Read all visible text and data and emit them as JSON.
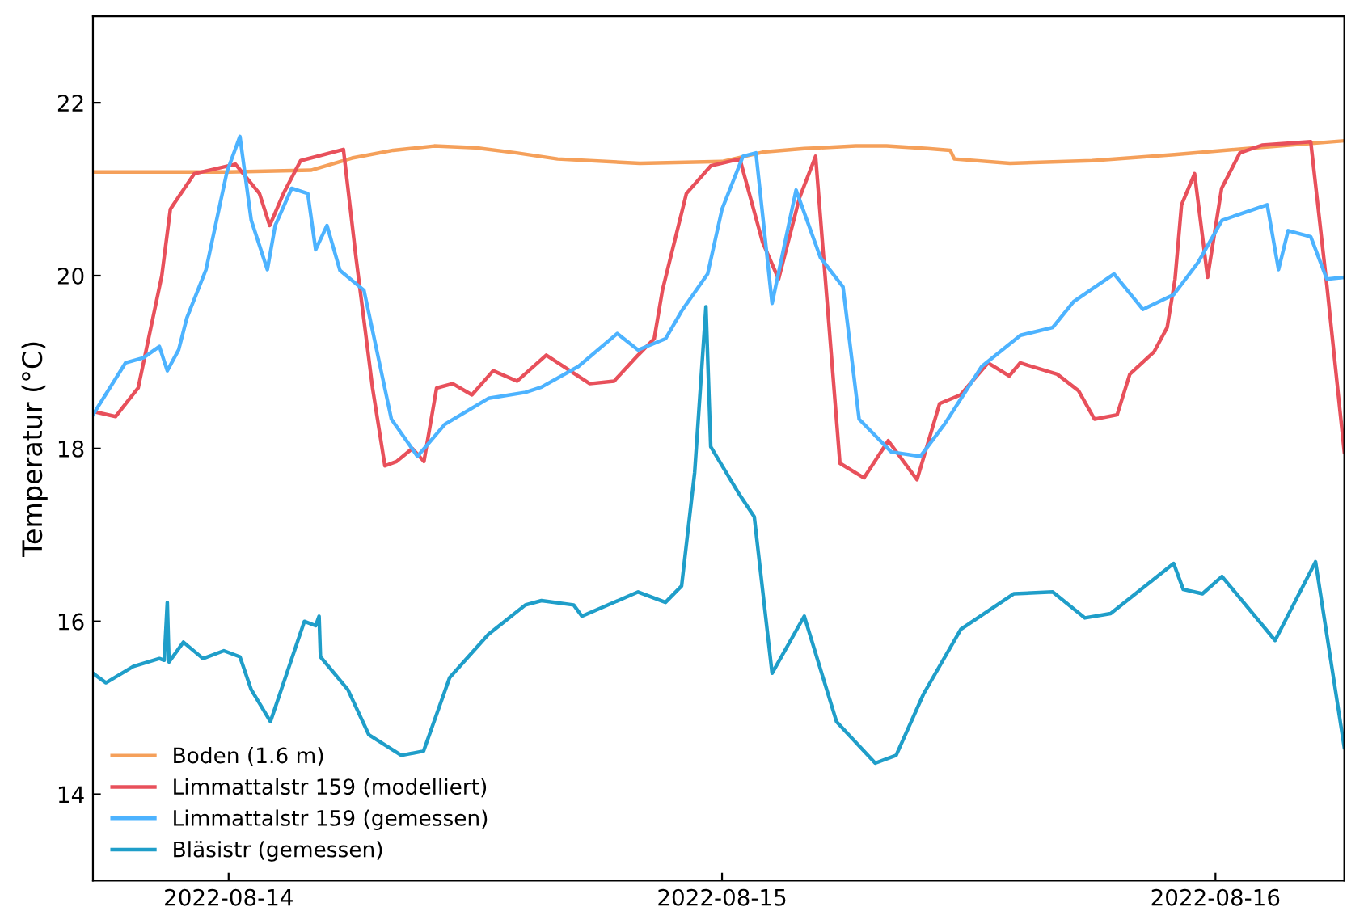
{
  "chart_data": {
    "type": "line",
    "ylabel": "Temperatur (°C)",
    "xlim": [
      "2022-08-13T17:24",
      "2022-08-16T06:16"
    ],
    "ylim": [
      13,
      23
    ],
    "xticks": [
      "2022-08-14",
      "2022-08-15",
      "2022-08-16"
    ],
    "yticks": [
      14,
      16,
      18,
      20,
      22
    ],
    "grid": false,
    "legend": "bottom left",
    "marker": "none",
    "line_style": "solid",
    "series": [
      {
        "name": "Boden (1.6 m)",
        "color": "#f5a05a",
        "x": [
          "2022-08-13T17:24",
          "2022-08-14T00:00",
          "2022-08-14T04:00",
          "2022-08-14T06:00",
          "2022-08-14T08:00",
          "2022-08-14T10:00",
          "2022-08-14T12:00",
          "2022-08-14T14:00",
          "2022-08-14T16:00",
          "2022-08-14T20:00",
          "2022-08-15T00:00",
          "2022-08-15T02:00",
          "2022-08-15T04:00",
          "2022-08-15T06:30",
          "2022-08-15T08:00",
          "2022-08-15T10:00",
          "2022-08-15T11:06",
          "2022-08-15T11:18",
          "2022-08-15T14:00",
          "2022-08-15T18:00",
          "2022-08-15T22:00",
          "2022-08-16T02:00",
          "2022-08-16T06:16"
        ],
        "values": [
          21.2,
          21.2,
          21.22,
          21.36,
          21.45,
          21.5,
          21.48,
          21.42,
          21.35,
          21.3,
          21.32,
          21.43,
          21.47,
          21.5,
          21.5,
          21.47,
          21.45,
          21.35,
          21.3,
          21.33,
          21.4,
          21.48,
          21.56
        ]
      },
      {
        "name": "Limmattalstr 159 (modelliert)",
        "color": "#e8505b",
        "x": [
          "2022-08-13T17:24",
          "2022-08-13T18:30",
          "2022-08-13T19:36",
          "2022-08-13T20:45",
          "2022-08-13T21:10",
          "2022-08-13T22:20",
          "2022-08-14T00:20",
          "2022-08-14T01:30",
          "2022-08-14T02:00",
          "2022-08-14T02:40",
          "2022-08-14T03:30",
          "2022-08-14T05:35",
          "2022-08-14T06:12",
          "2022-08-14T07:00",
          "2022-08-14T07:36",
          "2022-08-14T08:10",
          "2022-08-14T08:56",
          "2022-08-14T09:30",
          "2022-08-14T10:07",
          "2022-08-14T10:54",
          "2022-08-14T11:50",
          "2022-08-14T12:52",
          "2022-08-14T14:02",
          "2022-08-14T15:27",
          "2022-08-14T17:34",
          "2022-08-14T18:45",
          "2022-08-14T19:55",
          "2022-08-14T20:42",
          "2022-08-14T21:06",
          "2022-08-14T22:16",
          "2022-08-14T23:27",
          "2022-08-15T00:52",
          "2022-08-15T01:58",
          "2022-08-15T02:45",
          "2022-08-15T03:46",
          "2022-08-15T04:33",
          "2022-08-15T05:44",
          "2022-08-15T06:54",
          "2022-08-15T08:05",
          "2022-08-15T09:29",
          "2022-08-15T10:35",
          "2022-08-15T11:36",
          "2022-08-15T12:56",
          "2022-08-15T13:58",
          "2022-08-15T14:30",
          "2022-08-15T16:18",
          "2022-08-15T17:20",
          "2022-08-15T18:07",
          "2022-08-15T19:13",
          "2022-08-15T19:50",
          "2022-08-15T21:01",
          "2022-08-15T21:39",
          "2022-08-15T22:02",
          "2022-08-15T22:21",
          "2022-08-15T22:59",
          "2022-08-15T23:37",
          "2022-08-16T00:18",
          "2022-08-16T01:11",
          "2022-08-16T02:16",
          "2022-08-16T04:38",
          "2022-08-16T05:25",
          "2022-08-16T06:16"
        ],
        "values": [
          18.43,
          18.37,
          18.7,
          20.0,
          20.77,
          21.18,
          21.29,
          20.95,
          20.58,
          20.95,
          21.33,
          21.46,
          20.2,
          18.7,
          17.8,
          17.85,
          18.0,
          17.85,
          18.7,
          18.75,
          18.62,
          18.9,
          18.78,
          19.08,
          18.75,
          18.78,
          19.08,
          19.27,
          19.83,
          20.95,
          21.27,
          21.35,
          20.39,
          19.96,
          20.9,
          21.38,
          17.83,
          17.66,
          18.09,
          17.64,
          18.52,
          18.62,
          18.99,
          18.84,
          18.99,
          18.86,
          18.67,
          18.34,
          18.39,
          18.86,
          19.12,
          19.4,
          19.96,
          20.82,
          21.18,
          19.98,
          21.01,
          21.42,
          21.51,
          21.55,
          19.89,
          17.96
        ]
      },
      {
        "name": "Limmattalstr 159 (gemessen)",
        "color": "#4db3ff",
        "x": [
          "2022-08-13T17:24",
          "2022-08-13T18:59",
          "2022-08-13T19:51",
          "2022-08-13T20:38",
          "2022-08-13T21:01",
          "2022-08-13T21:34",
          "2022-08-13T21:58",
          "2022-08-13T22:54",
          "2022-08-13T23:55",
          "2022-08-14T00:33",
          "2022-08-14T01:06",
          "2022-08-14T01:53",
          "2022-08-14T02:16",
          "2022-08-14T03:04",
          "2022-08-14T03:51",
          "2022-08-14T04:14",
          "2022-08-14T04:47",
          "2022-08-14T05:25",
          "2022-08-14T06:35",
          "2022-08-14T07:55",
          "2022-08-14T09:11",
          "2022-08-14T10:31",
          "2022-08-14T12:38",
          "2022-08-14T14:26",
          "2022-08-14T15:13",
          "2022-08-14T17:01",
          "2022-08-14T18:54",
          "2022-08-14T19:55",
          "2022-08-14T21:15",
          "2022-08-14T22:02",
          "2022-08-14T23:18",
          "2022-08-15T00:00",
          "2022-08-15T01:01",
          "2022-08-15T01:39",
          "2022-08-15T02:26",
          "2022-08-15T03:36",
          "2022-08-15T04:47",
          "2022-08-15T05:53",
          "2022-08-15T06:40",
          "2022-08-15T08:14",
          "2022-08-15T09:39",
          "2022-08-15T10:49",
          "2022-08-15T12:38",
          "2022-08-15T14:31",
          "2022-08-15T16:05",
          "2022-08-15T17:06",
          "2022-08-15T19:04",
          "2022-08-15T20:28",
          "2022-08-15T21:58",
          "2022-08-15T23:09",
          "2022-08-16T00:19",
          "2022-08-16T02:31",
          "2022-08-16T03:04",
          "2022-08-16T03:32",
          "2022-08-16T04:38",
          "2022-08-16T05:25",
          "2022-08-16T06:16"
        ],
        "values": [
          18.39,
          18.99,
          19.05,
          19.18,
          18.9,
          19.14,
          19.51,
          20.07,
          21.2,
          21.61,
          20.64,
          20.07,
          20.58,
          21.01,
          20.95,
          20.3,
          20.58,
          20.06,
          19.83,
          18.34,
          17.91,
          18.28,
          18.58,
          18.65,
          18.71,
          18.95,
          19.33,
          19.14,
          19.27,
          19.59,
          20.02,
          20.77,
          21.38,
          21.42,
          19.68,
          20.99,
          20.21,
          19.87,
          18.34,
          17.96,
          17.91,
          18.28,
          18.95,
          19.31,
          19.4,
          19.7,
          20.02,
          19.61,
          19.78,
          20.15,
          20.64,
          20.82,
          20.07,
          20.52,
          20.45,
          19.96,
          19.98
        ]
      },
      {
        "name": "Bläsistr (gemessen)",
        "color": "#1f9ec9",
        "x": [
          "2022-08-13T17:24",
          "2022-08-13T18:02",
          "2022-08-13T19:22",
          "2022-08-13T20:38",
          "2022-08-13T20:52",
          "2022-08-13T21:01",
          "2022-08-13T21:06",
          "2022-08-13T21:48",
          "2022-08-13T22:45",
          "2022-08-13T23:46",
          "2022-08-14T00:33",
          "2022-08-14T01:06",
          "2022-08-14T02:02",
          "2022-08-14T03:41",
          "2022-08-14T04:14",
          "2022-08-14T04:24",
          "2022-08-14T04:28",
          "2022-08-14T05:48",
          "2022-08-14T06:49",
          "2022-08-14T08:24",
          "2022-08-14T09:29",
          "2022-08-14T10:45",
          "2022-08-14T12:38",
          "2022-08-14T14:26",
          "2022-08-14T15:13",
          "2022-08-14T16:47",
          "2022-08-14T17:11",
          "2022-08-14T19:55",
          "2022-08-14T21:15",
          "2022-08-14T22:02",
          "2022-08-14T22:40",
          "2022-08-14T23:13",
          "2022-08-14T23:27",
          "2022-08-15T00:52",
          "2022-08-15T01:34",
          "2022-08-15T02:26",
          "2022-08-15T04:00",
          "2022-08-15T05:34",
          "2022-08-15T07:27",
          "2022-08-15T08:28",
          "2022-08-15T09:48",
          "2022-08-15T11:37",
          "2022-08-15T14:12",
          "2022-08-15T16:05",
          "2022-08-15T17:39",
          "2022-08-15T18:54",
          "2022-08-15T21:58",
          "2022-08-15T22:26",
          "2022-08-15T23:22",
          "2022-08-16T00:19",
          "2022-08-16T02:54",
          "2022-08-16T04:52",
          "2022-08-16T06:16"
        ],
        "values": [
          15.4,
          15.29,
          15.48,
          15.57,
          15.55,
          16.22,
          15.53,
          15.76,
          15.57,
          15.66,
          15.59,
          15.21,
          14.84,
          16.0,
          15.95,
          16.06,
          15.59,
          15.21,
          14.69,
          14.45,
          14.5,
          15.35,
          15.85,
          16.19,
          16.24,
          16.19,
          16.06,
          16.34,
          16.22,
          16.41,
          17.72,
          19.64,
          18.02,
          17.46,
          17.21,
          15.4,
          16.06,
          14.84,
          14.36,
          14.45,
          15.16,
          15.91,
          16.32,
          16.34,
          16.04,
          16.09,
          16.67,
          16.37,
          16.32,
          16.52,
          15.78,
          16.69,
          14.54
        ]
      }
    ]
  }
}
